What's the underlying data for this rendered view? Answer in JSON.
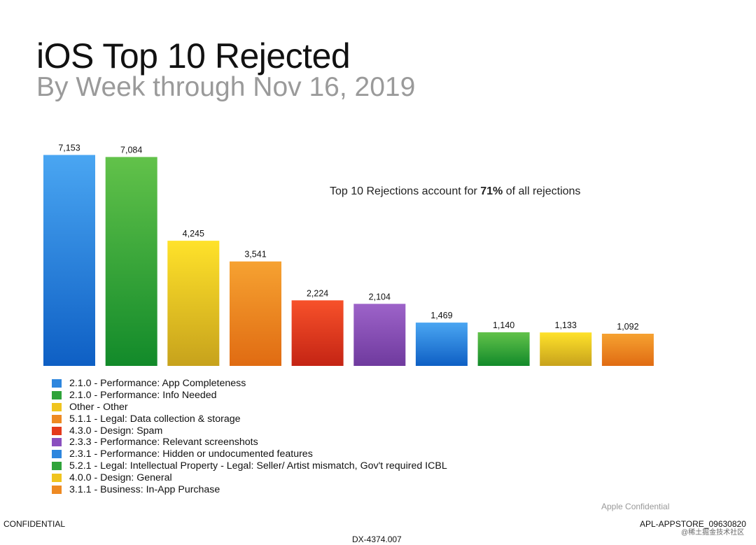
{
  "header": {
    "title": "iOS Top 10 Rejected",
    "subtitle": "By Week through Nov 16, 2019"
  },
  "annotation": {
    "prefix": "Top 10 Rejections account for ",
    "highlight": "71%",
    "suffix": " of all rejections"
  },
  "chart_data": {
    "type": "bar",
    "title": "iOS Top 10 Rejected",
    "subtitle": "By Week through Nov 16, 2019",
    "xlabel": "",
    "ylabel": "",
    "ylim": [
      0,
      7153
    ],
    "grid": false,
    "legend_position": "bottom-left",
    "categories": [
      "2.1.0 - Performance: App Completeness",
      "2.1.0 - Performance: Info Needed",
      "Other - Other",
      "5.1.1 - Legal: Data collection & storage",
      "4.3.0 - Design: Spam",
      "2.3.3 - Performance: Relevant screenshots",
      "2.3.1 - Performance: Hidden or undocumented features",
      "5.2.1 - Legal: Intellectual Property - Legal: Seller/ Artist mismatch, Gov't required ICBL",
      "4.0.0 - Design: General",
      "3.1.1 - Business: In-App Purchase"
    ],
    "values": [
      7153,
      7084,
      4245,
      3541,
      2224,
      2104,
      1469,
      1140,
      1133,
      1092
    ],
    "value_labels": [
      "7,153",
      "7,084",
      "4,245",
      "3,541",
      "2,224",
      "2,104",
      "1,469",
      "1,140",
      "1,133",
      "1,092"
    ],
    "colors": [
      "blue",
      "green",
      "yellow",
      "orange",
      "red",
      "purple",
      "blue",
      "green",
      "yellow",
      "orange"
    ]
  },
  "palette": {
    "blue": {
      "top": "#4aa6f2",
      "bottom": "#0e5fc4",
      "swatch": "#2d86de"
    },
    "green": {
      "top": "#62c24a",
      "bottom": "#128a2a",
      "swatch": "#2fa33a"
    },
    "yellow": {
      "top": "#ffe22a",
      "bottom": "#c7a21c",
      "swatch": "#f0c41e"
    },
    "orange": {
      "top": "#f6a231",
      "bottom": "#e06b12",
      "swatch": "#ee8a22"
    },
    "red": {
      "top": "#f7512a",
      "bottom": "#c42414",
      "swatch": "#e43a1c"
    },
    "purple": {
      "top": "#9d63c9",
      "bottom": "#6f3a9e",
      "swatch": "#8a4fbf"
    }
  },
  "footer": {
    "apple_confidential": "Apple Confidential",
    "confidential": "CONFIDENTIAL",
    "bates": "APL-APPSTORE_09630820",
    "exhibit": "DX-4374.007",
    "watermark": "@稀土掘金技术社区"
  }
}
